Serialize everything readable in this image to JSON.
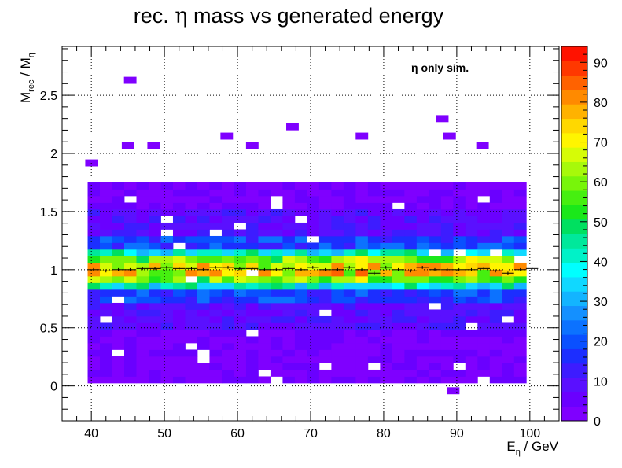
{
  "chart_data": {
    "type": "heatmap",
    "title_prefix": "rec. ",
    "title_symbol": "η",
    "title_suffix": " mass vs generated energy",
    "xlabel": {
      "main": "E",
      "sub": "η",
      "rest": " / GeV"
    },
    "ylabel": {
      "main1": "M",
      "sub1": "rec",
      "mid": " / M",
      "sub2": "η"
    },
    "annotation": "η only sim.",
    "xlim": [
      36,
      104
    ],
    "ylim": [
      -0.3,
      2.92
    ],
    "xticks": [
      "40",
      "50",
      "60",
      "70",
      "80",
      "90",
      "100"
    ],
    "yticks": [
      "0",
      "0.5",
      "1",
      "1.5",
      "2",
      "2.5"
    ],
    "zlim": [
      0,
      94
    ],
    "zticks": [
      "0",
      "10",
      "20",
      "30",
      "40",
      "50",
      "60",
      "70",
      "80",
      "90"
    ],
    "grid": true,
    "log_scale": false,
    "bins": {
      "x_start": 39.5,
      "x_width": 1.667,
      "nx": 36,
      "y_start": 0.025,
      "y_width": 0.0575,
      "ny": 30
    },
    "cells": [],
    "isolated_cells": [
      {
        "x": 45.3,
        "y": 2.63,
        "z": 2
      },
      {
        "x": 88.0,
        "y": 2.3,
        "z": 2
      },
      {
        "x": 67.5,
        "y": 2.23,
        "z": 2
      },
      {
        "x": 58.5,
        "y": 2.15,
        "z": 2
      },
      {
        "x": 77.0,
        "y": 2.15,
        "z": 2
      },
      {
        "x": 89.0,
        "y": 2.15,
        "z": 2
      },
      {
        "x": 45.0,
        "y": 2.07,
        "z": 2
      },
      {
        "x": 48.5,
        "y": 2.07,
        "z": 2
      },
      {
        "x": 62.0,
        "y": 2.07,
        "z": 2
      },
      {
        "x": 93.5,
        "y": 2.07,
        "z": 2
      },
      {
        "x": 40.0,
        "y": 1.92,
        "z": 2
      },
      {
        "x": 89.5,
        "y": -0.04,
        "z": 2
      }
    ],
    "profile": {
      "x": [
        40.3,
        42.0,
        43.7,
        45.3,
        47.0,
        48.7,
        50.3,
        52.0,
        53.7,
        55.3,
        57.0,
        58.7,
        60.3,
        62.0,
        63.7,
        65.3,
        67.0,
        68.7,
        70.3,
        72.0,
        73.7,
        75.3,
        77.0,
        78.7,
        80.3,
        82.0,
        83.7,
        85.3,
        87.0,
        88.7,
        90.3,
        92.0,
        93.7,
        95.3,
        97.0,
        98.7,
        100.3
      ],
      "y": [
        1.0,
        0.99,
        1.0,
        1.0,
        1.01,
        1.01,
        1.02,
        1.01,
        1.01,
        1.0,
        1.02,
        1.02,
        1.01,
        1.01,
        1.0,
        1.0,
        1.01,
        1.0,
        1.02,
        1.0,
        1.0,
        1.02,
        1.0,
        0.97,
        1.02,
        1.0,
        0.99,
        1.02,
        1.0,
        1.0,
        1.0,
        1.0,
        1.01,
        0.99,
        0.97,
        1.0,
        1.01
      ],
      "err": [
        0.013,
        0.013,
        0.013,
        0.013,
        0.013,
        0.013,
        0.013,
        0.013,
        0.013,
        0.013,
        0.013,
        0.013,
        0.013,
        0.013,
        0.013,
        0.013,
        0.013,
        0.013,
        0.013,
        0.013,
        0.013,
        0.013,
        0.013,
        0.013,
        0.013,
        0.013,
        0.013,
        0.013,
        0.013,
        0.013,
        0.013,
        0.013,
        0.013,
        0.013,
        0.013,
        0.013,
        0.013
      ]
    },
    "palette": [
      "#7f00ff",
      "#6a00ff",
      "#5a10ff",
      "#3d1cff",
      "#1c2eff",
      "#0a50ff",
      "#0c72ff",
      "#1490ff",
      "#13b4ff",
      "#10d8ff",
      "#00ffff",
      "#00f2c8",
      "#00e89b",
      "#00e060",
      "#1ae81a",
      "#46ef10",
      "#78f50a",
      "#a7f90a",
      "#d6fc06",
      "#fff500",
      "#ffd800",
      "#ffb200",
      "#ff8a00",
      "#ff6200",
      "#ff3800",
      "#ff1200"
    ]
  }
}
